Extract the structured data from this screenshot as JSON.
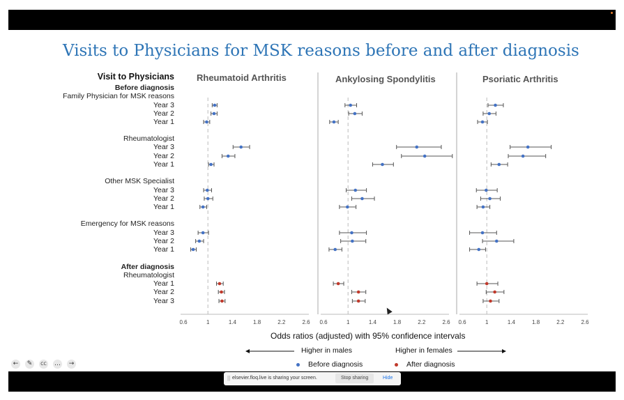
{
  "slide": {
    "title": "Visits to Physicians for MSK reasons before and after diagnosis"
  },
  "colors": {
    "before": "#4472c4",
    "after": "#c0392b",
    "ci": "#555555",
    "ref": "#bbbbbb"
  },
  "rows": [
    {
      "label": "Visit to Physicians",
      "style": "header"
    },
    {
      "label": "Before diagnosis",
      "style": "bold"
    },
    {
      "label": "Family Physician for MSK reasons",
      "style": "plain"
    },
    {
      "label": "Year 3",
      "style": "plain"
    },
    {
      "label": "Year 2",
      "style": "plain"
    },
    {
      "label": "Year 1",
      "style": "plain"
    },
    {
      "label": "Rheumatologist",
      "style": "plain"
    },
    {
      "label": "Year 3",
      "style": "plain"
    },
    {
      "label": "Year 2",
      "style": "plain"
    },
    {
      "label": "Year 1",
      "style": "plain"
    },
    {
      "label": "Other MSK Specialist",
      "style": "plain"
    },
    {
      "label": "Year 3",
      "style": "plain"
    },
    {
      "label": "Year 2",
      "style": "plain"
    },
    {
      "label": "Year 1",
      "style": "plain"
    },
    {
      "label": "Emergency for MSK reasons",
      "style": "plain"
    },
    {
      "label": "Year 3",
      "style": "plain"
    },
    {
      "label": "Year 2",
      "style": "plain"
    },
    {
      "label": "Year 1",
      "style": "plain"
    },
    {
      "label": "After diagnosis",
      "style": "bold"
    },
    {
      "label": "Rheumatologist",
      "style": "plain"
    },
    {
      "label": "Year 1",
      "style": "plain"
    },
    {
      "label": "Year 2",
      "style": "plain"
    },
    {
      "label": "Year 3",
      "style": "plain"
    }
  ],
  "chart_data": {
    "type": "scatter",
    "subtype": "forest-plot",
    "xlabel": "Odds ratios (adjusted) with 95% confidence intervals",
    "xlim": [
      0.6,
      2.6
    ],
    "xticks": [
      "0.6",
      "1",
      "1.4",
      "1.8",
      "2.2",
      "2.6"
    ],
    "reference_line": 1,
    "direction_left": "Higher in males",
    "direction_right": "Higher in females",
    "legend": {
      "before": "Before diagnosis",
      "after": "After diagnosis"
    },
    "panels": [
      {
        "title": "Rheumatoid Arthritis",
        "points": [
          {
            "row": 3,
            "est": 1.11,
            "lo": 1.07,
            "hi": 1.15,
            "group": "before"
          },
          {
            "row": 4,
            "est": 1.1,
            "lo": 1.05,
            "hi": 1.15,
            "group": "before"
          },
          {
            "row": 5,
            "est": 0.98,
            "lo": 0.93,
            "hi": 1.03,
            "group": "before"
          },
          {
            "row": 7,
            "est": 1.54,
            "lo": 1.41,
            "hi": 1.68,
            "group": "before"
          },
          {
            "row": 8,
            "est": 1.33,
            "lo": 1.23,
            "hi": 1.44,
            "group": "before"
          },
          {
            "row": 9,
            "est": 1.05,
            "lo": 1.01,
            "hi": 1.1,
            "group": "before"
          },
          {
            "row": 11,
            "est": 0.99,
            "lo": 0.93,
            "hi": 1.06,
            "group": "before"
          },
          {
            "row": 12,
            "est": 1.0,
            "lo": 0.94,
            "hi": 1.08,
            "group": "before"
          },
          {
            "row": 13,
            "est": 0.92,
            "lo": 0.87,
            "hi": 0.98,
            "group": "before"
          },
          {
            "row": 15,
            "est": 0.92,
            "lo": 0.84,
            "hi": 1.01,
            "group": "before"
          },
          {
            "row": 16,
            "est": 0.86,
            "lo": 0.8,
            "hi": 0.93,
            "group": "before"
          },
          {
            "row": 17,
            "est": 0.76,
            "lo": 0.72,
            "hi": 0.81,
            "group": "before"
          },
          {
            "row": 20,
            "est": 1.19,
            "lo": 1.14,
            "hi": 1.25,
            "group": "after"
          },
          {
            "row": 21,
            "est": 1.22,
            "lo": 1.17,
            "hi": 1.27,
            "group": "after"
          },
          {
            "row": 22,
            "est": 1.23,
            "lo": 1.18,
            "hi": 1.28,
            "group": "after"
          }
        ]
      },
      {
        "title": "Ankylosing Spondylitis",
        "points": [
          {
            "row": 3,
            "est": 1.04,
            "lo": 0.95,
            "hi": 1.14,
            "group": "before"
          },
          {
            "row": 4,
            "est": 1.11,
            "lo": 1.01,
            "hi": 1.23,
            "group": "before"
          },
          {
            "row": 5,
            "est": 0.77,
            "lo": 0.7,
            "hi": 0.84,
            "group": "before"
          },
          {
            "row": 7,
            "est": 2.12,
            "lo": 1.79,
            "hi": 2.52,
            "group": "before"
          },
          {
            "row": 8,
            "est": 2.25,
            "lo": 1.87,
            "hi": 2.7,
            "group": "before"
          },
          {
            "row": 9,
            "est": 1.56,
            "lo": 1.4,
            "hi": 1.74,
            "group": "before"
          },
          {
            "row": 11,
            "est": 1.12,
            "lo": 0.97,
            "hi": 1.3,
            "group": "before"
          },
          {
            "row": 12,
            "est": 1.23,
            "lo": 1.06,
            "hi": 1.43,
            "group": "before"
          },
          {
            "row": 13,
            "est": 0.99,
            "lo": 0.86,
            "hi": 1.13,
            "group": "before"
          },
          {
            "row": 15,
            "est": 1.06,
            "lo": 0.86,
            "hi": 1.3,
            "group": "before"
          },
          {
            "row": 16,
            "est": 1.07,
            "lo": 0.88,
            "hi": 1.29,
            "group": "before"
          },
          {
            "row": 17,
            "est": 0.79,
            "lo": 0.69,
            "hi": 0.9,
            "group": "before"
          },
          {
            "row": 20,
            "est": 0.84,
            "lo": 0.76,
            "hi": 0.93,
            "group": "after"
          },
          {
            "row": 21,
            "est": 1.17,
            "lo": 1.06,
            "hi": 1.29,
            "group": "after"
          },
          {
            "row": 22,
            "est": 1.17,
            "lo": 1.07,
            "hi": 1.28,
            "group": "after"
          }
        ]
      },
      {
        "title": "Psoriatic Arthritis",
        "points": [
          {
            "row": 3,
            "est": 1.14,
            "lo": 1.02,
            "hi": 1.27,
            "group": "before"
          },
          {
            "row": 4,
            "est": 1.04,
            "lo": 0.94,
            "hi": 1.15,
            "group": "before"
          },
          {
            "row": 5,
            "est": 0.93,
            "lo": 0.85,
            "hi": 1.01,
            "group": "before"
          },
          {
            "row": 7,
            "est": 1.67,
            "lo": 1.38,
            "hi": 2.05,
            "group": "before"
          },
          {
            "row": 8,
            "est": 1.59,
            "lo": 1.35,
            "hi": 1.96,
            "group": "before"
          },
          {
            "row": 9,
            "est": 1.2,
            "lo": 1.07,
            "hi": 1.34,
            "group": "before"
          },
          {
            "row": 11,
            "est": 0.99,
            "lo": 0.83,
            "hi": 1.17,
            "group": "before"
          },
          {
            "row": 12,
            "est": 1.05,
            "lo": 0.9,
            "hi": 1.22,
            "group": "before"
          },
          {
            "row": 13,
            "est": 0.94,
            "lo": 0.84,
            "hi": 1.05,
            "group": "before"
          },
          {
            "row": 15,
            "est": 0.93,
            "lo": 0.72,
            "hi": 1.16,
            "group": "before"
          },
          {
            "row": 16,
            "est": 1.16,
            "lo": 0.93,
            "hi": 1.44,
            "group": "before"
          },
          {
            "row": 17,
            "est": 0.87,
            "lo": 0.72,
            "hi": 0.98,
            "group": "before"
          },
          {
            "row": 20,
            "est": 1.0,
            "lo": 0.84,
            "hi": 1.18,
            "group": "after"
          },
          {
            "row": 21,
            "est": 1.13,
            "lo": 0.99,
            "hi": 1.28,
            "group": "after"
          },
          {
            "row": 22,
            "est": 1.06,
            "lo": 0.94,
            "hi": 1.2,
            "group": "after"
          }
        ]
      }
    ]
  },
  "share": {
    "message": "elsevier.floq.live is sharing your screen.",
    "stop_label": "Stop sharing",
    "hide_label": "Hide"
  },
  "controls": [
    {
      "icon": "arrow-left-icon",
      "glyph": "←"
    },
    {
      "icon": "pencil-icon",
      "glyph": "✎"
    },
    {
      "icon": "captions-icon",
      "glyph": "CC"
    },
    {
      "icon": "more-icon",
      "glyph": "…"
    },
    {
      "icon": "arrow-right-icon",
      "glyph": "→"
    }
  ]
}
